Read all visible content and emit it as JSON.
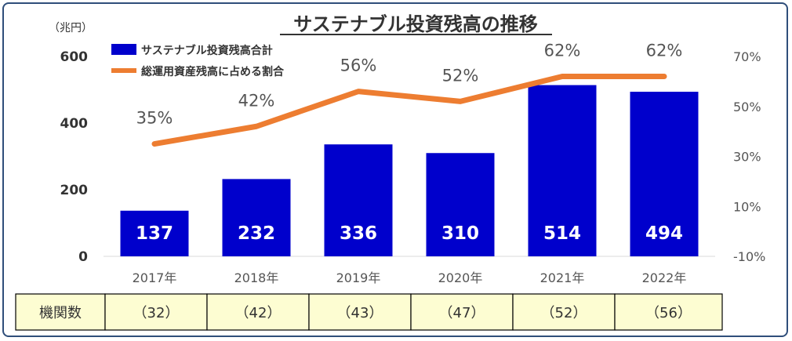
{
  "chart_data": {
    "type": "bar+line",
    "title": "サステナブル投資残高の推移",
    "left_axis_unit": "（兆円）",
    "categories": [
      "2017年",
      "2018年",
      "2019年",
      "2020年",
      "2021年",
      "2022年"
    ],
    "left_ticks": [
      "600",
      "400",
      "200",
      "0"
    ],
    "right_ticks": [
      "70%",
      "50%",
      "30%",
      "10%",
      "-10%"
    ],
    "ylim_left": [
      0,
      600
    ],
    "ylim_right": [
      -10,
      70
    ],
    "series": [
      {
        "name": "サステナブル投資残高合計",
        "kind": "bar",
        "axis": "left",
        "color": "#0000cc",
        "values": [
          137,
          232,
          336,
          310,
          514,
          494
        ],
        "labels": [
          "137",
          "232",
          "336",
          "310",
          "514",
          "494"
        ]
      },
      {
        "name": "総運用資産残高に占める割合",
        "kind": "line",
        "axis": "right",
        "color": "#ed7d31",
        "values": [
          35,
          42,
          56,
          52,
          62,
          62
        ],
        "labels": [
          "35%",
          "42%",
          "56%",
          "52%",
          "62%",
          "62%"
        ]
      }
    ],
    "legend_position": "top-left",
    "grid": false
  },
  "table": {
    "header": "機関数",
    "values": [
      "（32）",
      "（42）",
      "（43）",
      "（47）",
      "（52）",
      "（56）"
    ],
    "fill_color": "#fdfdd2"
  }
}
